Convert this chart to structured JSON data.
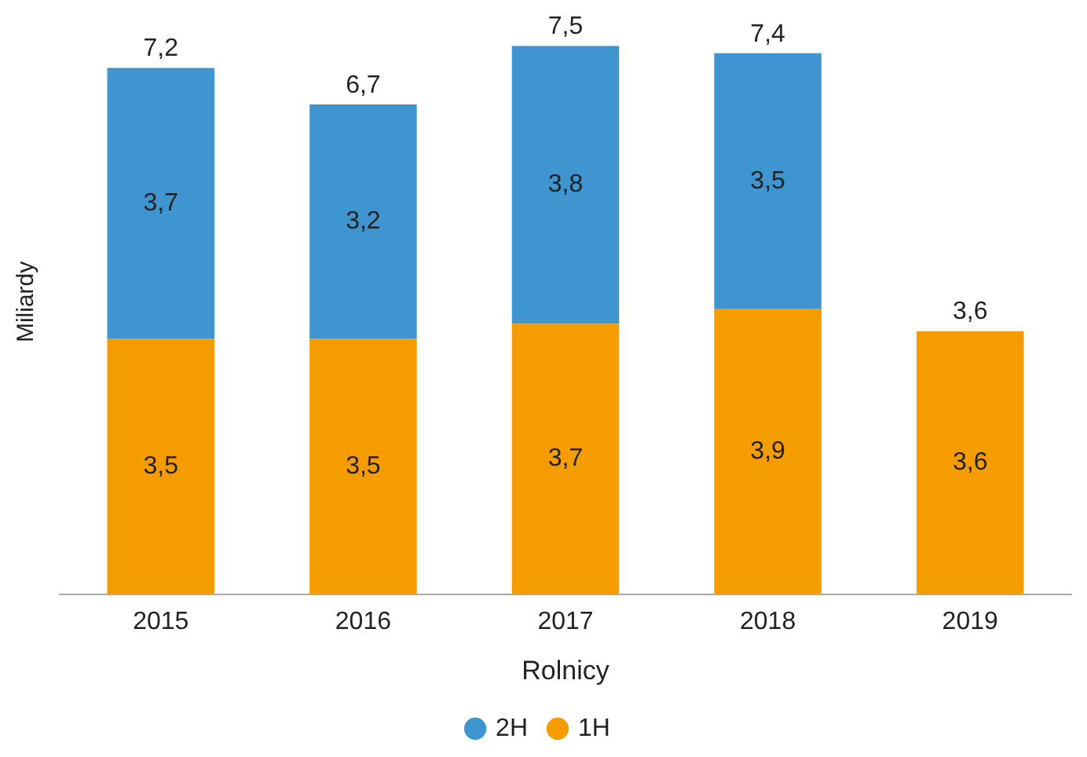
{
  "chart_data": {
    "type": "bar",
    "stacked": true,
    "xlabel": "Rolnicy",
    "ylabel": "Miliardy",
    "categories": [
      "2015",
      "2016",
      "2017",
      "2018",
      "2019"
    ],
    "series": [
      {
        "name": "1H",
        "color": "#f59c00",
        "values": [
          3.5,
          3.5,
          3.7,
          3.9,
          3.6
        ],
        "value_labels": [
          "3,5",
          "3,5",
          "3,7",
          "3,9",
          "3,6"
        ]
      },
      {
        "name": "2H",
        "color": "#3f95d0",
        "values": [
          3.7,
          3.2,
          3.8,
          3.5,
          null
        ],
        "value_labels": [
          "3,7",
          "3,2",
          "3,8",
          "3,5",
          null
        ]
      }
    ],
    "totals": [
      "7,2",
      "6,7",
      "7,5",
      "7,4",
      "3,6"
    ],
    "legend": "bottom",
    "grid": false
  }
}
